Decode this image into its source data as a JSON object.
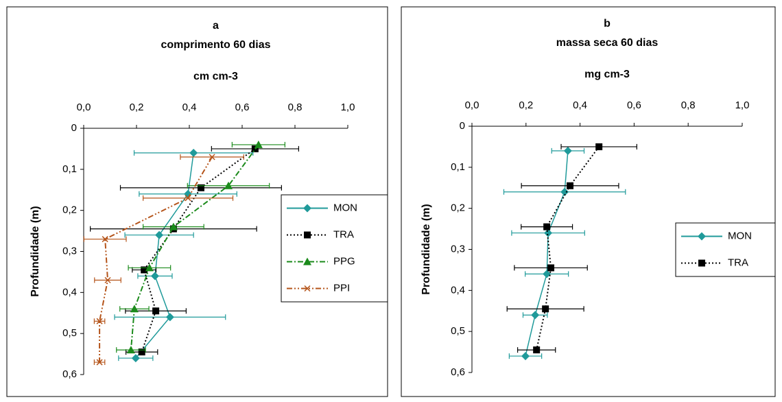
{
  "chart_data": [
    {
      "type": "errorbar-line",
      "panel": "a",
      "title": "comprimento 60 dias",
      "x_label": "cm cm-3",
      "y_label": "Profundidade (m)",
      "xlim": [
        0,
        1
      ],
      "ylim": [
        0,
        0.6
      ],
      "xticks": [
        {
          "value": 0,
          "label": "0,0"
        },
        {
          "value": 0.2,
          "label": "0,2"
        },
        {
          "value": 0.4,
          "label": "0,4"
        },
        {
          "value": 0.6,
          "label": "0,6"
        },
        {
          "value": 0.8,
          "label": "0,8"
        },
        {
          "value": 1,
          "label": "1,0"
        }
      ],
      "yticks": [
        0,
        {
          "value": 0.1,
          "label": "0,1"
        },
        {
          "value": 0.2,
          "label": "0,2"
        },
        {
          "value": 0.3,
          "label": "0,3"
        },
        {
          "value": 0.4,
          "label": "0,4"
        },
        {
          "value": 0.5,
          "label": "0,5"
        },
        {
          "value": 0.6,
          "label": "0,6"
        }
      ],
      "y_inverted": true,
      "legend": "right",
      "series": [
        {
          "name": "MON",
          "color": "#1f9a9a",
          "marker": "diamond",
          "line": "solid",
          "x": [
            0.416,
            0.395,
            0.286,
            0.27,
            0.327,
            0.197
          ],
          "y": [
            0.06,
            0.16,
            0.26,
            0.36,
            0.46,
            0.56
          ],
          "errors": [
            0.225,
            0.185,
            0.13,
            0.065,
            0.21,
            0.065
          ]
        },
        {
          "name": "TRA",
          "color": "#000000",
          "marker": "square",
          "line": "dotted",
          "x": [
            0.649,
            0.444,
            0.34,
            0.229,
            0.273,
            0.22
          ],
          "y": [
            0.05,
            0.145,
            0.245,
            0.345,
            0.445,
            0.545
          ],
          "errors": [
            0.165,
            0.305,
            0.315,
            0.045,
            0.115,
            0.06
          ]
        },
        {
          "name": "PPG",
          "color": "#1a8a1a",
          "marker": "triangle",
          "line": "dashdot",
          "x": [
            0.662,
            0.548,
            0.34,
            0.249,
            0.192,
            0.179
          ],
          "y": [
            0.04,
            0.14,
            0.24,
            0.34,
            0.44,
            0.54
          ],
          "errors": [
            0.1,
            0.155,
            0.115,
            0.08,
            0.055,
            0.055
          ]
        },
        {
          "name": "PPI",
          "color": "#b5541a",
          "marker": "x",
          "line": "dashdotdot",
          "x": [
            0.486,
            0.395,
            0.081,
            0.091,
            0.06,
            0.06
          ],
          "y": [
            0.07,
            0.17,
            0.27,
            0.37,
            0.47,
            0.57
          ],
          "errors": [
            0.12,
            0.17,
            0.08,
            0.05,
            0.02,
            0.02
          ]
        }
      ]
    },
    {
      "type": "errorbar-line",
      "panel": "b",
      "title": "massa seca 60 dias",
      "x_label": "mg cm-3",
      "y_label": "Profundidade (m)",
      "xlim": [
        0,
        1
      ],
      "ylim": [
        0,
        0.6
      ],
      "xticks": [
        {
          "value": 0,
          "label": "0,0"
        },
        {
          "value": 0.2,
          "label": "0,2"
        },
        {
          "value": 0.4,
          "label": "0,4"
        },
        {
          "value": 0.6,
          "label": "0,6"
        },
        {
          "value": 0.8,
          "label": "0,8"
        },
        {
          "value": 1,
          "label": "1,0"
        }
      ],
      "yticks": [
        0,
        {
          "value": 0.1,
          "label": "0,1"
        },
        {
          "value": 0.2,
          "label": "0,2"
        },
        {
          "value": 0.3,
          "label": "0,3"
        },
        {
          "value": 0.4,
          "label": "0,4"
        },
        {
          "value": 0.5,
          "label": "0,5"
        },
        {
          "value": 0.6,
          "label": "0,6"
        }
      ],
      "y_inverted": true,
      "legend": "right",
      "series": [
        {
          "name": "MON",
          "color": "#1f9a9a",
          "marker": "diamond",
          "line": "solid",
          "x": [
            0.355,
            0.343,
            0.282,
            0.277,
            0.234,
            0.198
          ],
          "y": [
            0.06,
            0.16,
            0.26,
            0.36,
            0.46,
            0.56
          ],
          "errors": [
            0.06,
            0.225,
            0.135,
            0.08,
            0.045,
            0.06
          ]
        },
        {
          "name": "TRA",
          "color": "#000000",
          "marker": "square",
          "line": "dotted",
          "x": [
            0.47,
            0.363,
            0.277,
            0.292,
            0.272,
            0.239
          ],
          "y": [
            0.05,
            0.145,
            0.245,
            0.345,
            0.445,
            0.545
          ],
          "errors": [
            0.14,
            0.18,
            0.095,
            0.135,
            0.142,
            0.07
          ]
        }
      ]
    }
  ]
}
